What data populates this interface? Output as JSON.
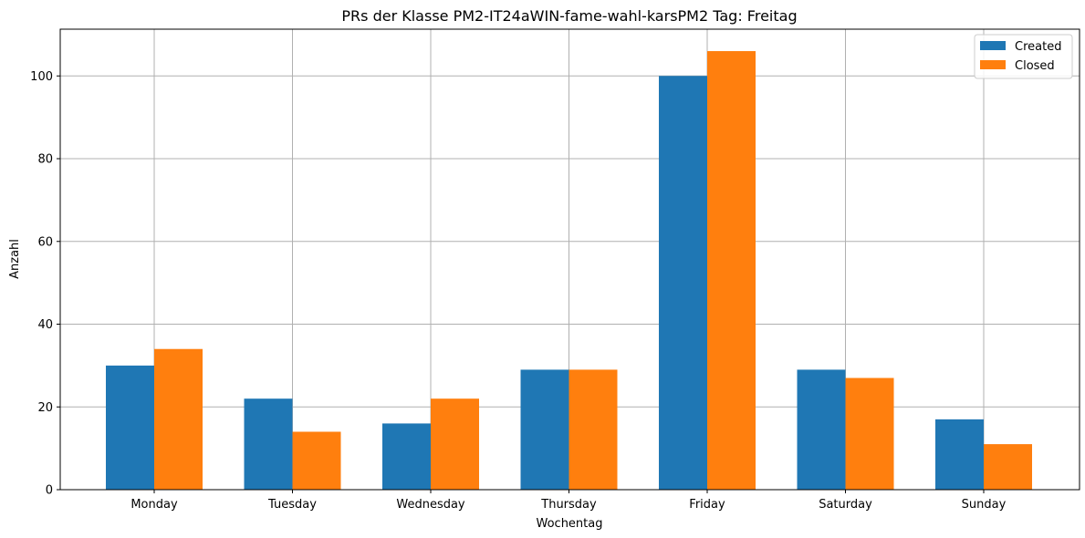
{
  "chart_data": {
    "type": "bar",
    "title": "PRs der Klasse PM2-IT24aWIN-fame-wahl-karsPM2 Tag: Freitag",
    "xlabel": "Wochentag",
    "ylabel": "Anzahl",
    "categories": [
      "Monday",
      "Tuesday",
      "Wednesday",
      "Thursday",
      "Friday",
      "Saturday",
      "Sunday"
    ],
    "series": [
      {
        "name": "Created",
        "color": "#1f77b4",
        "values": [
          30,
          22,
          16,
          29,
          100,
          29,
          17
        ]
      },
      {
        "name": "Closed",
        "color": "#ff7f0e",
        "values": [
          34,
          14,
          22,
          29,
          106,
          27,
          11
        ]
      }
    ],
    "ylim": [
      0,
      111.3
    ],
    "yticks": [
      0,
      20,
      40,
      60,
      80,
      100
    ],
    "grid": true,
    "legend_position": "top-right"
  }
}
